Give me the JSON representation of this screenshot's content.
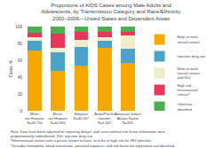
{
  "chart_data": {
    "type": "bar",
    "stacked": true,
    "title": "Proportions of AIDS Cases among Male Adults and\nAdolescents, by Transmission Category and Race/Ethnicity\n2002–2006—United States and Dependent Areas",
    "ylabel": "Cases, %",
    "categories": [
      "White,\nnot Hispanic\nN=46,750",
      "Black,\nnot Hispanic\nN=60,692",
      "Hispanic\nN=30,167",
      "Asian/Pacific\nIslander\nN=1,667",
      "American Indian/\nAlaska Native\nN=825"
    ],
    "series": [
      {
        "name": "Male-to-male\nsexual contact",
        "color": "#F5A800",
        "values": [
          72,
          47,
          54,
          75,
          57
        ]
      },
      {
        "name": "Injection drug use",
        "color": "#4BA3C7",
        "values": [
          11,
          22,
          22,
          8,
          17
        ]
      },
      {
        "name": "Male-to-male\nsexual contact\nand IDU",
        "color": "#F0ECC8",
        "values": [
          4,
          6,
          8,
          4,
          15
        ]
      },
      {
        "name": "High-risk\nheterosexual\ncontact*",
        "color": "#E8365D",
        "values": [
          6,
          17,
          10,
          7,
          5
        ]
      },
      {
        "name": "Other/not\nidentified",
        "color": "#4CAF50",
        "values": [
          7,
          8,
          6,
          6,
          6
        ]
      }
    ],
    "ylim": [
      0,
      100
    ],
    "yticks": [
      0,
      20,
      40,
      60,
      80,
      100
    ],
    "grid": false,
    "legend": "right",
    "annotations": [
      "Note: Data have been adjusted for reporting delays, and cases without risk factor information were\nproportionately redistributed. IDU, injection drug use.\n*Heterosexual contact with a person known to have, or to be at high risk for, HIV infection.\n†Includes hemophilia, blood transfusion, perinatal exposure, and risk factor not reported or not identified."
    ]
  }
}
